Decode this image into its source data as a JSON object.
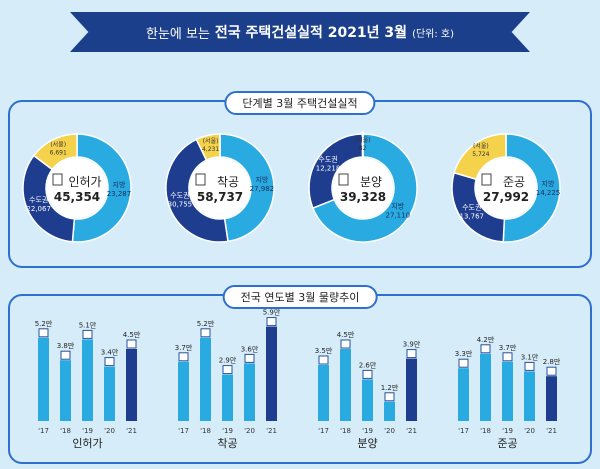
{
  "banner": {
    "prefix": "한눈에 보는",
    "title": "전국 주택건설실적 2021년 3월",
    "unit": "(단위: 호)"
  },
  "section1": {
    "title": "단계별 3월 주택건설실적"
  },
  "section2": {
    "title": "전국 연도별 3월 물량추이"
  },
  "colors": {
    "local": "#29abe2",
    "capital": "#1f3d8f",
    "seoul": "#f5d24b",
    "bar_light": "#29abe2",
    "bar_dark": "#1f3d8f"
  },
  "chart_data": [
    {
      "type": "pie",
      "title": "인허가",
      "total": "45,354",
      "slices": [
        {
          "label": "지방",
          "value": 23287,
          "text": "23,287"
        },
        {
          "label": "수도권",
          "value": 22067,
          "text": "22,067"
        },
        {
          "label": "(서울)",
          "value": 6691,
          "text": "6,691"
        }
      ]
    },
    {
      "type": "pie",
      "title": "착공",
      "total": "58,737",
      "slices": [
        {
          "label": "지방",
          "value": 27982,
          "text": "27,982"
        },
        {
          "label": "수도권",
          "value": 30755,
          "text": "30,755"
        },
        {
          "label": "(서울)",
          "value": 4231,
          "text": "4,231"
        }
      ]
    },
    {
      "type": "pie",
      "title": "분양",
      "total": "39,328",
      "slices": [
        {
          "label": "지방",
          "value": 27110,
          "text": "27,110"
        },
        {
          "label": "수도권",
          "value": 12218,
          "text": "12,218"
        },
        {
          "label": "(서울)",
          "value": 82,
          "text": "82"
        }
      ]
    },
    {
      "type": "pie",
      "title": "준공",
      "total": "27,992",
      "slices": [
        {
          "label": "지방",
          "value": 14225,
          "text": "14,225"
        },
        {
          "label": "수도권",
          "value": 13767,
          "text": "13,767"
        },
        {
          "label": "(서울)",
          "value": 5724,
          "text": "5,724"
        }
      ]
    },
    {
      "type": "bar",
      "title": "인허가",
      "categories": [
        "'17",
        "'18",
        "'19",
        "'20",
        "'21"
      ],
      "values": [
        5.2,
        3.8,
        5.1,
        3.4,
        4.5
      ],
      "labels": [
        "5.2만",
        "3.8만",
        "5.1만",
        "3.4만",
        "4.5만"
      ]
    },
    {
      "type": "bar",
      "title": "착공",
      "categories": [
        "'17",
        "'18",
        "'19",
        "'20",
        "'21"
      ],
      "values": [
        3.7,
        5.2,
        2.9,
        3.6,
        5.9
      ],
      "labels": [
        "3.7만",
        "5.2만",
        "2.9만",
        "3.6만",
        "5.9만"
      ]
    },
    {
      "type": "bar",
      "title": "분양",
      "categories": [
        "'17",
        "'18",
        "'19",
        "'20",
        "'21"
      ],
      "values": [
        3.5,
        4.5,
        2.6,
        1.2,
        3.9
      ],
      "labels": [
        "3.5만",
        "4.5만",
        "2.6만",
        "1.2만",
        "3.9만"
      ]
    },
    {
      "type": "bar",
      "title": "준공",
      "categories": [
        "'17",
        "'18",
        "'19",
        "'20",
        "'21"
      ],
      "values": [
        3.3,
        4.2,
        3.7,
        3.1,
        2.8
      ],
      "labels": [
        "3.3만",
        "4.2만",
        "3.7만",
        "3.1만",
        "2.8만"
      ]
    }
  ]
}
